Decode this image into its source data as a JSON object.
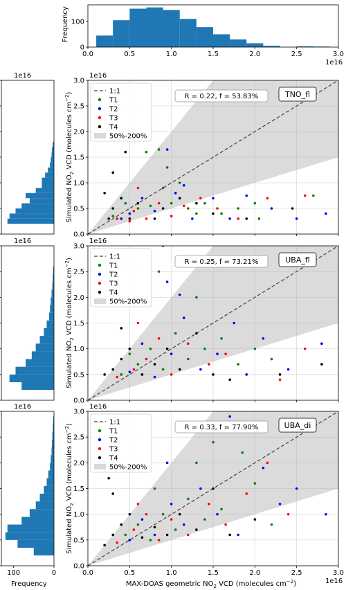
{
  "figure": {
    "x_exponent_label": "1e16",
    "y_exponent_label": "1e16",
    "xlabel_main": "MAX-DOAS geometric NO",
    "xlabel_sub": "2",
    "xlabel_tail": " VCD (molecules cm",
    "xlabel_sup": "−2",
    "xlabel_close": ")",
    "ylabel_main": "Simulated NO",
    "ylabel_sub": "2",
    "ylabel_tail": " VCD (molecules cm",
    "ylabel_sup": "−2",
    "ylabel_close": ")",
    "freq_label": "Frequency"
  },
  "colors": {
    "hist": "#1f77b4",
    "T1": "#008000",
    "T2": "#0000ff",
    "T3": "#ff0000",
    "T4": "#000000",
    "band": "#d9d9d9",
    "one_to_one": "#404040"
  },
  "legend": {
    "items": [
      {
        "label": "1:1",
        "kind": "dash"
      },
      {
        "label": "T1",
        "kind": "dot",
        "color": "#008000"
      },
      {
        "label": "T2",
        "kind": "dot",
        "color": "#0000ff"
      },
      {
        "label": "T3",
        "kind": "dot",
        "color": "#ff0000"
      },
      {
        "label": "T4",
        "kind": "dot",
        "color": "#000000"
      },
      {
        "label": "50%-200%",
        "kind": "patch"
      }
    ]
  },
  "chart_data": [
    {
      "type": "bar",
      "title": "",
      "ylabel": "Frequency",
      "xlim": [
        0,
        3
      ],
      "ylim": [
        0,
        165
      ],
      "yticks": [
        "0",
        "100"
      ],
      "xticks": [
        "0.0",
        "0.5",
        "1.0",
        "1.5",
        "2.0",
        "2.5",
        "3.0"
      ],
      "bin_edges": [
        0.1,
        0.3,
        0.5,
        0.7,
        0.9,
        1.1,
        1.3,
        1.5,
        1.7,
        1.9,
        2.1,
        2.3,
        2.5,
        2.7,
        2.9
      ],
      "values": [
        45,
        105,
        150,
        155,
        145,
        110,
        78,
        50,
        30,
        15,
        5,
        0,
        3,
        2
      ]
    },
    {
      "type": "scatter",
      "label": "TNO_fl",
      "stats": "R = 0.22, f = 53.83%",
      "xlim": [
        0,
        3
      ],
      "ylim": [
        0,
        3
      ],
      "grid": true,
      "ylabel": "Simulated NO2 VCD (molecules cm-2)",
      "legend_position": "top-left",
      "series": [
        {
          "name": "T1",
          "points": [
            [
              0.45,
              0.6
            ],
            [
              0.6,
              0.5
            ],
            [
              0.75,
              0.55
            ],
            [
              0.9,
              0.9
            ],
            [
              1.0,
              0.6
            ],
            [
              1.2,
              0.5
            ],
            [
              1.4,
              0.6
            ],
            [
              1.6,
              0.4
            ],
            [
              1.8,
              0.5
            ],
            [
              0.7,
              1.6
            ],
            [
              0.85,
              1.65
            ],
            [
              0.95,
              1.3
            ],
            [
              1.1,
              1.0
            ],
            [
              1.3,
              0.4
            ],
            [
              2.0,
              0.6
            ],
            [
              2.05,
              0.3
            ],
            [
              2.7,
              0.75
            ],
            [
              0.3,
              0.35
            ]
          ]
        },
        {
          "name": "T2",
          "points": [
            [
              0.5,
              0.4
            ],
            [
              0.65,
              0.7
            ],
            [
              0.8,
              0.45
            ],
            [
              1.05,
              0.8
            ],
            [
              1.25,
              0.3
            ],
            [
              1.5,
              0.7
            ],
            [
              1.7,
              0.3
            ],
            [
              0.95,
              1.65
            ],
            [
              1.15,
              0.95
            ],
            [
              2.2,
              0.5
            ],
            [
              2.5,
              0.3
            ],
            [
              2.85,
              0.4
            ],
            [
              0.4,
              0.3
            ],
            [
              1.9,
              0.75
            ]
          ]
        },
        {
          "name": "T3",
          "points": [
            [
              0.35,
              0.3
            ],
            [
              0.55,
              0.45
            ],
            [
              0.7,
              0.3
            ],
            [
              0.85,
              0.6
            ],
            [
              1.0,
              0.35
            ],
            [
              1.15,
              0.55
            ],
            [
              1.35,
              0.7
            ],
            [
              1.55,
              0.5
            ],
            [
              0.6,
              0.9
            ],
            [
              1.8,
              0.3
            ],
            [
              2.15,
              0.7
            ],
            [
              2.6,
              0.75
            ],
            [
              0.5,
              0.25
            ]
          ]
        },
        {
          "name": "T4",
          "points": [
            [
              0.2,
              0.8
            ],
            [
              0.3,
              0.5
            ],
            [
              0.4,
              0.7
            ],
            [
              0.5,
              0.3
            ],
            [
              0.6,
              0.6
            ],
            [
              0.8,
              0.3
            ],
            [
              0.9,
              0.5
            ],
            [
              1.1,
              0.7
            ],
            [
              1.3,
              0.6
            ],
            [
              0.3,
              1.2
            ],
            [
              0.45,
              1.6
            ],
            [
              1.9,
              0.3
            ],
            [
              2.45,
              0.5
            ],
            [
              0.25,
              0.3
            ],
            [
              1.5,
              0.4
            ]
          ]
        }
      ]
    },
    {
      "type": "scatter",
      "label": "UBA_fl",
      "stats": "R = 0.25, f = 73.21%",
      "xlim": [
        0,
        3
      ],
      "ylim": [
        0,
        3
      ],
      "grid": true,
      "ylabel": "Simulated NO2 VCD (molecules cm-2)",
      "legend_position": "top-left",
      "series": [
        {
          "name": "T1",
          "points": [
            [
              0.4,
              0.5
            ],
            [
              0.6,
              0.7
            ],
            [
              0.75,
              1.0
            ],
            [
              0.9,
              0.6
            ],
            [
              1.05,
              1.3
            ],
            [
              1.2,
              0.8
            ],
            [
              1.4,
              1.0
            ],
            [
              1.6,
              1.2
            ],
            [
              1.8,
              0.7
            ],
            [
              0.85,
              2.5
            ],
            [
              1.3,
              2.0
            ],
            [
              2.0,
              1.0
            ],
            [
              2.2,
              0.8
            ],
            [
              0.5,
              0.9
            ]
          ]
        },
        {
          "name": "T2",
          "points": [
            [
              0.5,
              0.55
            ],
            [
              0.65,
              1.1
            ],
            [
              0.8,
              0.45
            ],
            [
              1.0,
              0.9
            ],
            [
              1.15,
              1.6
            ],
            [
              1.35,
              0.6
            ],
            [
              1.55,
              0.9
            ],
            [
              1.75,
              1.5
            ],
            [
              1.9,
              0.5
            ],
            [
              2.1,
              1.2
            ],
            [
              2.4,
              0.6
            ],
            [
              1.1,
              2.05
            ],
            [
              0.95,
              2.3
            ],
            [
              2.8,
              1.1
            ]
          ]
        },
        {
          "name": "T3",
          "points": [
            [
              0.35,
              0.45
            ],
            [
              0.55,
              0.6
            ],
            [
              0.7,
              0.8
            ],
            [
              0.85,
              1.2
            ],
            [
              1.0,
              0.5
            ],
            [
              1.2,
              1.1
            ],
            [
              1.45,
              0.7
            ],
            [
              1.65,
              0.9
            ],
            [
              0.9,
              3.0
            ],
            [
              2.3,
              0.4
            ],
            [
              2.6,
              1.0
            ],
            [
              0.6,
              1.5
            ]
          ]
        },
        {
          "name": "T4",
          "points": [
            [
              0.2,
              0.5
            ],
            [
              0.3,
              0.6
            ],
            [
              0.4,
              0.8
            ],
            [
              0.5,
              1.0
            ],
            [
              0.65,
              0.5
            ],
            [
              0.8,
              0.7
            ],
            [
              0.95,
              1.0
            ],
            [
              1.1,
              0.6
            ],
            [
              1.3,
              1.3
            ],
            [
              1.5,
              0.5
            ],
            [
              0.4,
              1.4
            ],
            [
              2.3,
              0.5
            ],
            [
              2.8,
              0.7
            ],
            [
              1.7,
              0.4
            ]
          ]
        }
      ]
    },
    {
      "type": "scatter",
      "label": "UBA_di",
      "stats": "R = 0.33, f = 77.90%",
      "xlim": [
        0,
        3
      ],
      "ylim": [
        0,
        3
      ],
      "grid": true,
      "xlabel": "MAX-DOAS geometric NO2 VCD (molecules cm-2)",
      "ylabel": "Simulated NO2 VCD (molecules cm-2)",
      "legend_position": "top-left",
      "series": [
        {
          "name": "T1",
          "points": [
            [
              0.45,
              0.6
            ],
            [
              0.6,
              0.8
            ],
            [
              0.75,
              0.5
            ],
            [
              0.9,
              1.0
            ],
            [
              1.05,
              0.7
            ],
            [
              1.2,
              1.3
            ],
            [
              1.4,
              0.9
            ],
            [
              1.6,
              1.1
            ],
            [
              1.85,
              2.2
            ],
            [
              1.5,
              2.4
            ],
            [
              2.0,
              1.6
            ],
            [
              2.2,
              0.8
            ],
            [
              0.8,
              1.5
            ],
            [
              1.3,
              2.0
            ]
          ]
        },
        {
          "name": "T2",
          "points": [
            [
              0.5,
              0.5
            ],
            [
              0.65,
              0.9
            ],
            [
              0.8,
              0.6
            ],
            [
              1.0,
              1.2
            ],
            [
              1.15,
              0.8
            ],
            [
              1.35,
              1.5
            ],
            [
              1.55,
              1.0
            ],
            [
              1.8,
              0.6
            ],
            [
              2.1,
              1.9
            ],
            [
              2.3,
              1.2
            ],
            [
              2.5,
              1.5
            ],
            [
              2.85,
              1.0
            ],
            [
              1.7,
              2.9
            ],
            [
              0.95,
              2.0
            ]
          ]
        },
        {
          "name": "T3",
          "points": [
            [
              0.35,
              0.45
            ],
            [
              0.55,
              0.7
            ],
            [
              0.7,
              1.0
            ],
            [
              0.85,
              0.5
            ],
            [
              1.0,
              0.9
            ],
            [
              1.2,
              0.6
            ],
            [
              1.45,
              1.2
            ],
            [
              1.65,
              0.8
            ],
            [
              1.9,
              1.4
            ],
            [
              2.15,
              2.0
            ],
            [
              2.4,
              1.0
            ],
            [
              0.6,
              1.2
            ]
          ]
        },
        {
          "name": "T4",
          "points": [
            [
              0.2,
              0.4
            ],
            [
              0.3,
              0.6
            ],
            [
              0.4,
              0.8
            ],
            [
              0.5,
              1.0
            ],
            [
              0.65,
              0.55
            ],
            [
              0.8,
              0.75
            ],
            [
              0.95,
              0.6
            ],
            [
              1.1,
              1.0
            ],
            [
              1.3,
              0.7
            ],
            [
              1.5,
              1.5
            ],
            [
              0.3,
              1.4
            ],
            [
              0.25,
              1.7
            ],
            [
              1.7,
              0.6
            ],
            [
              2.0,
              0.9
            ]
          ]
        }
      ]
    },
    {
      "type": "bar",
      "orientation": "horizontal",
      "panel": "TNO_fl",
      "xlabel": "",
      "ylim": [
        0,
        3
      ],
      "bin_edges": [
        0.2,
        0.3,
        0.4,
        0.5,
        0.6,
        0.7,
        0.8,
        0.9,
        1.0,
        1.1,
        1.2,
        1.3,
        1.4,
        1.5,
        1.6,
        1.7,
        1.8
      ],
      "values": [
        115,
        110,
        95,
        80,
        60,
        70,
        45,
        30,
        30,
        22,
        15,
        10,
        8,
        6,
        5,
        3
      ]
    },
    {
      "type": "bar",
      "orientation": "horizontal",
      "panel": "UBA_fl",
      "ylim": [
        0,
        3
      ],
      "bin_edges": [
        0.2,
        0.35,
        0.5,
        0.65,
        0.8,
        0.95,
        1.1,
        1.25,
        1.4,
        1.55,
        1.7,
        1.85,
        2.0,
        2.15,
        2.3,
        2.45,
        2.6
      ],
      "values": [
        80,
        110,
        95,
        70,
        55,
        45,
        35,
        25,
        18,
        12,
        10,
        8,
        6,
        4,
        3,
        2
      ]
    },
    {
      "type": "bar",
      "orientation": "horizontal",
      "panel": "UBA_di",
      "xlabel": "Frequency",
      "ylim": [
        0,
        3
      ],
      "xticks": [
        "100",
        "0"
      ],
      "bin_edges": [
        0.2,
        0.35,
        0.5,
        0.65,
        0.8,
        0.95,
        1.1,
        1.25,
        1.4,
        1.55,
        1.7,
        1.85,
        2.0,
        2.15,
        2.3,
        2.45,
        2.6,
        2.75,
        2.9
      ],
      "values": [
        50,
        90,
        120,
        115,
        80,
        60,
        45,
        35,
        25,
        18,
        14,
        10,
        8,
        6,
        5,
        4,
        3,
        2
      ]
    }
  ]
}
